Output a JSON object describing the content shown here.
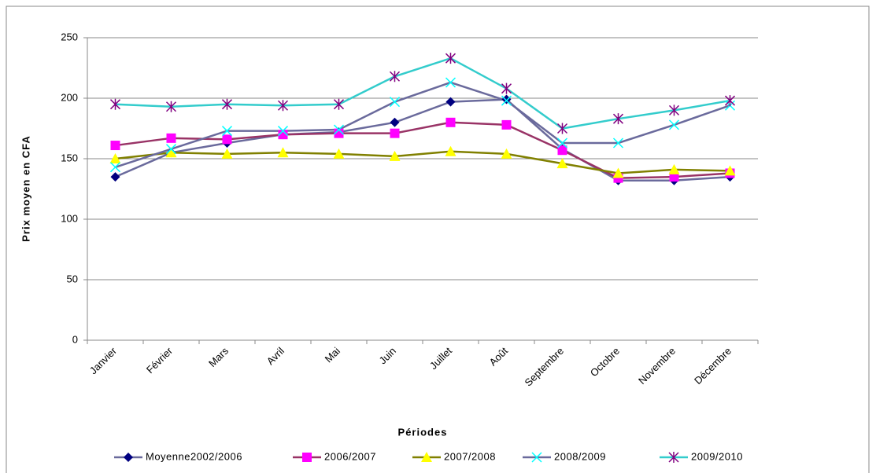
{
  "chart_data": {
    "type": "line",
    "y_label": "Prix moyen en CFA",
    "x_label": "Périodes",
    "categories": [
      "Janvier",
      "Février",
      "Mars",
      "Avril",
      "Mai",
      "Juin",
      "Juillet",
      "Août",
      "Septembre",
      "Octobre",
      "Novembre",
      "Décembre"
    ],
    "series": [
      {
        "name": "Moyenne2002/2006",
        "color": "#000080",
        "line_color": "#6a6a9c",
        "marker": "diamond",
        "values": [
          135,
          155,
          163,
          170,
          172,
          180,
          197,
          199,
          158,
          132,
          132,
          135
        ]
      },
      {
        "name": "2006/2007",
        "color": "#ff00ff",
        "line_color": "#993366",
        "marker": "square",
        "values": [
          161,
          167,
          166,
          170,
          171,
          171,
          180,
          178,
          157,
          134,
          135,
          138
        ]
      },
      {
        "name": "2007/2008",
        "color": "#ffff00",
        "line_color": "#808000",
        "marker": "triangle",
        "values": [
          150,
          155,
          154,
          155,
          154,
          152,
          156,
          154,
          146,
          138,
          141,
          140
        ]
      },
      {
        "name": "2008/2009",
        "color": "#00ffff",
        "line_color": "#6a6a9c",
        "marker": "x",
        "values": [
          143,
          158,
          173,
          173,
          174,
          197,
          213,
          198,
          163,
          163,
          178,
          194
        ]
      },
      {
        "name": "2009/2010",
        "color": "#800080",
        "line_color": "#33cccc",
        "marker": "star",
        "values": [
          195,
          193,
          195,
          194,
          195,
          218,
          233,
          208,
          175,
          183,
          190,
          198
        ]
      }
    ],
    "ylim": [
      0,
      250
    ],
    "yticks": [
      0,
      50,
      100,
      150,
      200,
      250
    ],
    "grid": true,
    "legend": "bottom"
  }
}
